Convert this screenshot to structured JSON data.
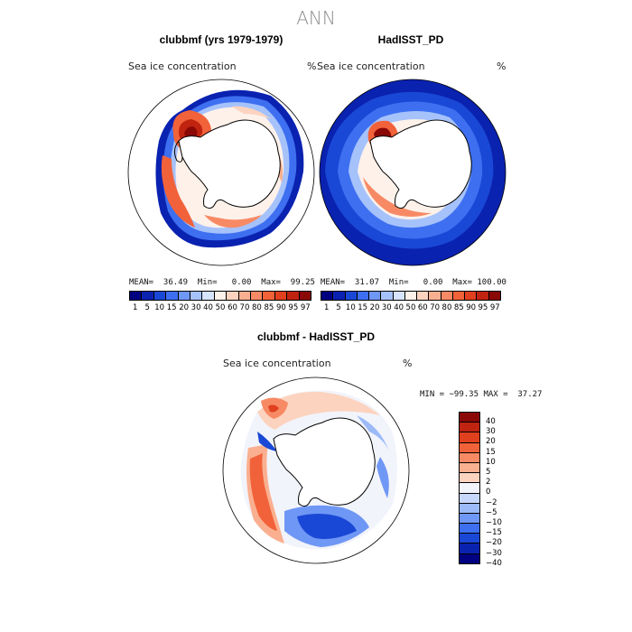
{
  "page_title": "ANN",
  "colors": {
    "seq": [
      "#000080",
      "#0a22b0",
      "#1a48d6",
      "#3d6ff0",
      "#6f97f5",
      "#a6c2fb",
      "#d7e4fd",
      "#fdf1ea",
      "#fcd3bf",
      "#fab090",
      "#f78a64",
      "#f2623a",
      "#e0401d",
      "#c02310",
      "#8a0806"
    ],
    "diff": [
      "#8a0806",
      "#c02310",
      "#e0401d",
      "#f2623a",
      "#f78a64",
      "#fab090",
      "#fcd3bf",
      "#f2f4fb",
      "#c6d7fb",
      "#9cbaf8",
      "#6f97f5",
      "#3d6ff0",
      "#1a48d6",
      "#0a22b0",
      "#000080"
    ]
  },
  "panels": {
    "model": {
      "title": "clubbmf (yrs 1979-1979)",
      "variable": "Sea ice concentration",
      "units": "%",
      "stats": "MEAN=  36.49  Min=   0.00  Max=  99.25"
    },
    "obs": {
      "title": "HadISST_PD",
      "variable": "Sea ice concentration",
      "units": "%",
      "stats": "MEAN=  31.07  Min=   0.00  Max= 100.00"
    },
    "diff": {
      "title": "clubbmf - HadISST_PD",
      "variable": "Sea ice concentration",
      "units": "%",
      "stats": "MIN = −99.35 MAX =  37.27"
    }
  },
  "colorbar_seq": {
    "labels": [
      "1",
      "5",
      "10",
      "15",
      "20",
      "30",
      "40",
      "50",
      "60",
      "70",
      "80",
      "85",
      "90",
      "95",
      "97"
    ]
  },
  "colorbar_diff": {
    "labels": [
      "40",
      "30",
      "20",
      "15",
      "10",
      "5",
      "2",
      "0",
      "−2",
      "−5",
      "−10",
      "−15",
      "−20",
      "−30",
      "−40"
    ]
  }
}
